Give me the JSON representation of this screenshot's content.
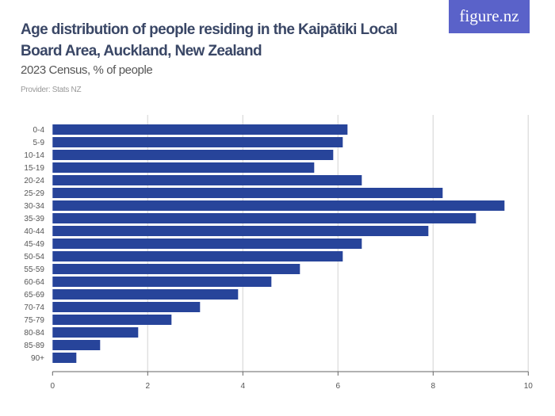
{
  "title": "Age distribution of people residing in the Kaipātiki Local Board Area, Auckland, New Zealand",
  "subtitle": "2023 Census, % of people",
  "provider": "Provider: Stats NZ",
  "logo": "figure.nz",
  "chart_data": {
    "type": "bar",
    "orientation": "horizontal",
    "categories": [
      "0-4",
      "5-9",
      "10-14",
      "15-19",
      "20-24",
      "25-29",
      "30-34",
      "35-39",
      "40-44",
      "45-49",
      "50-54",
      "55-59",
      "60-64",
      "65-69",
      "70-74",
      "75-79",
      "80-84",
      "85-89",
      "90+"
    ],
    "values": [
      6.2,
      6.1,
      5.9,
      5.5,
      6.5,
      8.2,
      9.5,
      8.9,
      7.9,
      6.5,
      6.1,
      5.2,
      4.6,
      3.9,
      3.1,
      2.5,
      1.8,
      1.0,
      0.5
    ],
    "xlim": [
      0,
      10
    ],
    "xticks": [
      "0",
      "2",
      "4",
      "6",
      "8",
      "10"
    ],
    "grid": true,
    "bar_color": "#27449a"
  }
}
